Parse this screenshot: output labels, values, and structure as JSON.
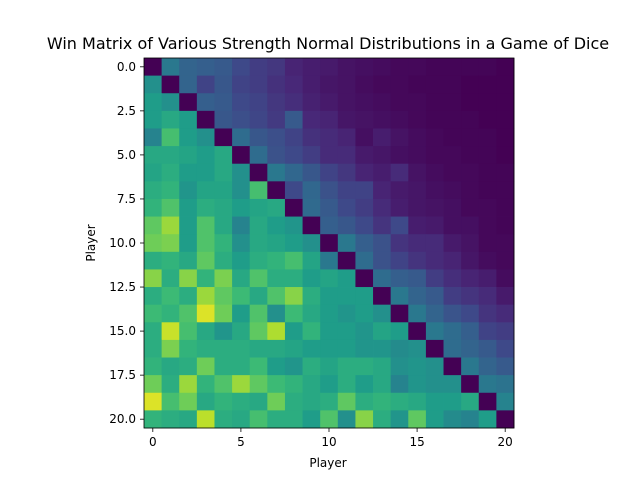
{
  "chart_data": {
    "type": "heatmap",
    "title": "Win Matrix of Various Strength Normal Distributions in a Game of Dice",
    "xlabel": "Player",
    "ylabel": "Player",
    "xlim": [
      -0.5,
      20.5
    ],
    "ylim": [
      20.5,
      -0.5
    ],
    "xticks": [
      0,
      5,
      10,
      15,
      20
    ],
    "xtick_labels": [
      "0",
      "5",
      "10",
      "15",
      "20"
    ],
    "yticks": [
      0.0,
      2.5,
      5.0,
      7.5,
      10.0,
      12.5,
      15.0,
      17.5,
      20.0
    ],
    "ytick_labels": [
      "0.0",
      "2.5",
      "5.0",
      "7.5",
      "10.0",
      "12.5",
      "15.0",
      "17.5",
      "20.0"
    ],
    "colormap": "viridis",
    "vmin": 0,
    "vmax": 1,
    "grid": false,
    "colorbar": false,
    "matrix": [
      [
        0.0,
        0.4,
        0.32,
        0.3,
        0.28,
        0.22,
        0.18,
        0.16,
        0.1,
        0.08,
        0.07,
        0.05,
        0.04,
        0.03,
        0.02,
        0.02,
        0.01,
        0.01,
        0.01,
        0.01,
        0.0
      ],
      [
        0.5,
        0.0,
        0.32,
        0.2,
        0.27,
        0.2,
        0.18,
        0.14,
        0.11,
        0.08,
        0.06,
        0.05,
        0.03,
        0.02,
        0.02,
        0.01,
        0.01,
        0.01,
        0.0,
        0.0,
        0.0
      ],
      [
        0.55,
        0.5,
        0.0,
        0.3,
        0.28,
        0.22,
        0.2,
        0.16,
        0.13,
        0.09,
        0.07,
        0.05,
        0.04,
        0.03,
        0.02,
        0.02,
        0.01,
        0.01,
        0.0,
        0.0,
        0.0
      ],
      [
        0.55,
        0.6,
        0.55,
        0.0,
        0.27,
        0.24,
        0.21,
        0.17,
        0.28,
        0.11,
        0.1,
        0.06,
        0.05,
        0.04,
        0.03,
        0.02,
        0.01,
        0.01,
        0.01,
        0.0,
        0.0
      ],
      [
        0.45,
        0.7,
        0.55,
        0.5,
        0.0,
        0.35,
        0.27,
        0.24,
        0.2,
        0.14,
        0.12,
        0.1,
        0.04,
        0.08,
        0.05,
        0.03,
        0.02,
        0.01,
        0.01,
        0.01,
        0.0
      ],
      [
        0.6,
        0.6,
        0.58,
        0.55,
        0.6,
        0.0,
        0.35,
        0.25,
        0.22,
        0.18,
        0.12,
        0.12,
        0.07,
        0.06,
        0.04,
        0.03,
        0.02,
        0.02,
        0.01,
        0.01,
        0.0
      ],
      [
        0.58,
        0.62,
        0.55,
        0.55,
        0.6,
        0.5,
        0.0,
        0.4,
        0.33,
        0.27,
        0.2,
        0.16,
        0.1,
        0.08,
        0.12,
        0.05,
        0.03,
        0.02,
        0.02,
        0.01,
        0.01
      ],
      [
        0.62,
        0.65,
        0.52,
        0.58,
        0.58,
        0.5,
        0.7,
        0.0,
        0.22,
        0.33,
        0.25,
        0.2,
        0.2,
        0.1,
        0.07,
        0.06,
        0.04,
        0.03,
        0.02,
        0.01,
        0.01
      ],
      [
        0.65,
        0.72,
        0.55,
        0.62,
        0.6,
        0.55,
        0.58,
        0.6,
        0.0,
        0.34,
        0.28,
        0.22,
        0.18,
        0.12,
        0.08,
        0.06,
        0.05,
        0.04,
        0.02,
        0.02,
        0.01
      ],
      [
        0.75,
        0.85,
        0.55,
        0.72,
        0.6,
        0.45,
        0.6,
        0.55,
        0.52,
        0.0,
        0.3,
        0.27,
        0.22,
        0.15,
        0.22,
        0.08,
        0.07,
        0.04,
        0.04,
        0.02,
        0.01
      ],
      [
        0.78,
        0.8,
        0.55,
        0.72,
        0.65,
        0.5,
        0.6,
        0.58,
        0.55,
        0.5,
        0.0,
        0.4,
        0.3,
        0.25,
        0.15,
        0.12,
        0.12,
        0.07,
        0.05,
        0.02,
        0.02
      ],
      [
        0.62,
        0.65,
        0.6,
        0.75,
        0.62,
        0.55,
        0.62,
        0.65,
        0.7,
        0.58,
        0.4,
        0.0,
        0.35,
        0.25,
        0.2,
        0.15,
        0.12,
        0.1,
        0.06,
        0.03,
        0.02
      ],
      [
        0.82,
        0.62,
        0.82,
        0.65,
        0.8,
        0.6,
        0.72,
        0.62,
        0.62,
        0.55,
        0.58,
        0.55,
        0.0,
        0.35,
        0.3,
        0.28,
        0.18,
        0.13,
        0.1,
        0.08,
        0.03
      ],
      [
        0.62,
        0.68,
        0.62,
        0.85,
        0.75,
        0.68,
        0.6,
        0.72,
        0.82,
        0.62,
        0.55,
        0.55,
        0.55,
        0.0,
        0.4,
        0.32,
        0.28,
        0.18,
        0.15,
        0.12,
        0.07
      ],
      [
        0.68,
        0.65,
        0.72,
        0.95,
        0.78,
        0.55,
        0.72,
        0.5,
        0.68,
        0.6,
        0.55,
        0.52,
        0.55,
        0.5,
        0.0,
        0.4,
        0.32,
        0.26,
        0.22,
        0.15,
        0.12
      ],
      [
        0.62,
        0.92,
        0.7,
        0.6,
        0.52,
        0.6,
        0.75,
        0.88,
        0.55,
        0.65,
        0.55,
        0.55,
        0.52,
        0.58,
        0.55,
        0.0,
        0.4,
        0.35,
        0.3,
        0.2,
        0.18
      ],
      [
        0.62,
        0.8,
        0.65,
        0.62,
        0.62,
        0.62,
        0.6,
        0.6,
        0.58,
        0.55,
        0.55,
        0.55,
        0.52,
        0.52,
        0.48,
        0.5,
        0.0,
        0.35,
        0.32,
        0.28,
        0.22
      ],
      [
        0.65,
        0.6,
        0.62,
        0.78,
        0.62,
        0.62,
        0.68,
        0.55,
        0.52,
        0.62,
        0.58,
        0.62,
        0.62,
        0.6,
        0.5,
        0.52,
        0.5,
        0.0,
        0.4,
        0.32,
        0.28
      ],
      [
        0.78,
        0.62,
        0.85,
        0.65,
        0.72,
        0.85,
        0.75,
        0.68,
        0.65,
        0.6,
        0.55,
        0.62,
        0.55,
        0.6,
        0.45,
        0.52,
        0.5,
        0.5,
        0.0,
        0.4,
        0.38
      ],
      [
        0.95,
        0.7,
        0.78,
        0.6,
        0.65,
        0.62,
        0.6,
        0.78,
        0.62,
        0.6,
        0.62,
        0.75,
        0.62,
        0.65,
        0.62,
        0.6,
        0.55,
        0.55,
        0.6,
        0.0,
        0.45
      ],
      [
        0.65,
        0.62,
        0.6,
        0.9,
        0.62,
        0.6,
        0.7,
        0.62,
        0.62,
        0.55,
        0.72,
        0.5,
        0.82,
        0.62,
        0.52,
        0.75,
        0.55,
        0.48,
        0.45,
        0.55,
        0.0
      ]
    ]
  }
}
